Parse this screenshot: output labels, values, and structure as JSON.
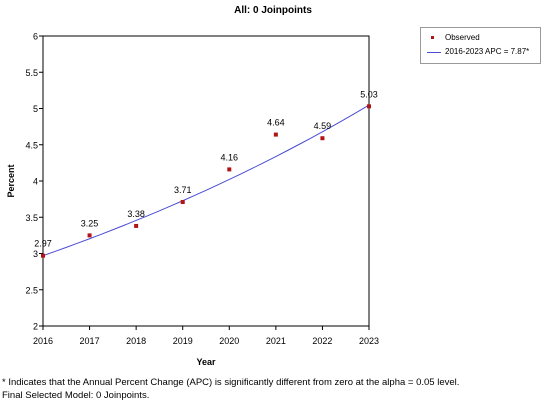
{
  "chart_data": {
    "type": "scatter",
    "title": "All: 0 Joinpoints",
    "xlabel": "Year",
    "ylabel": "Percent",
    "xlim": [
      2016,
      2023
    ],
    "ylim": [
      2,
      6
    ],
    "x_ticks": [
      "2016",
      "2017",
      "2018",
      "2019",
      "2020",
      "2021",
      "2022",
      "2023"
    ],
    "y_ticks": [
      "2",
      "2.5",
      "3",
      "3.5",
      "4",
      "4.5",
      "5",
      "5.5",
      "6"
    ],
    "observed": {
      "name": "Observed",
      "x": [
        2016,
        2017,
        2018,
        2019,
        2020,
        2021,
        2022,
        2023
      ],
      "y": [
        2.97,
        3.25,
        3.38,
        3.71,
        4.16,
        4.64,
        4.59,
        5.03
      ],
      "labels": [
        "2.97",
        "3.25",
        "3.38",
        "3.71",
        "4.16",
        "4.64",
        "4.59",
        "5.03"
      ],
      "color": "#b01414"
    },
    "fit": {
      "name": "2016-2023 APC  = 7.87*",
      "apc_percent": 7.87,
      "start_value": 2.97,
      "color": "#4b4bd6"
    },
    "legend_position": "top-right",
    "grid": false
  },
  "footnotes": [
    "* Indicates that the Annual Percent Change (APC) is significantly different from zero at the alpha = 0.05 level.",
    "Final Selected Model: 0 Joinpoints."
  ]
}
